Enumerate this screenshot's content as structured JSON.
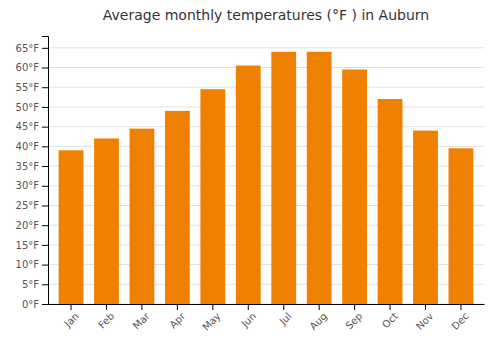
{
  "chart_data": {
    "type": "bar",
    "title": "Average monthly temperatures (°F ) in Auburn",
    "categories": [
      "Jan",
      "Feb",
      "Mar",
      "Apr",
      "May",
      "Jun",
      "Jul",
      "Aug",
      "Sep",
      "Oct",
      "Nov",
      "Dec"
    ],
    "values": [
      39,
      42,
      44.5,
      49,
      54.5,
      60.5,
      64,
      64,
      59.5,
      52,
      44,
      39.5
    ],
    "color": "#F08000",
    "ylim": [
      0,
      68
    ],
    "yticks": [
      {
        "value": 0,
        "label": "0°F"
      },
      {
        "value": 5,
        "label": "5°F"
      },
      {
        "value": 10,
        "label": "10°F"
      },
      {
        "value": 15,
        "label": "15°F"
      },
      {
        "value": 20,
        "label": "20°F"
      },
      {
        "value": 25,
        "label": "25°F"
      },
      {
        "value": 30,
        "label": "30°F"
      },
      {
        "value": 35,
        "label": "35°F"
      },
      {
        "value": 40,
        "label": "40°F"
      },
      {
        "value": 45,
        "label": "45°F"
      },
      {
        "value": 50,
        "label": "50°F"
      },
      {
        "value": 55,
        "label": "55°F"
      },
      {
        "value": 60,
        "label": "60°F"
      },
      {
        "value": 65,
        "label": "65°F"
      }
    ],
    "grid": true
  }
}
